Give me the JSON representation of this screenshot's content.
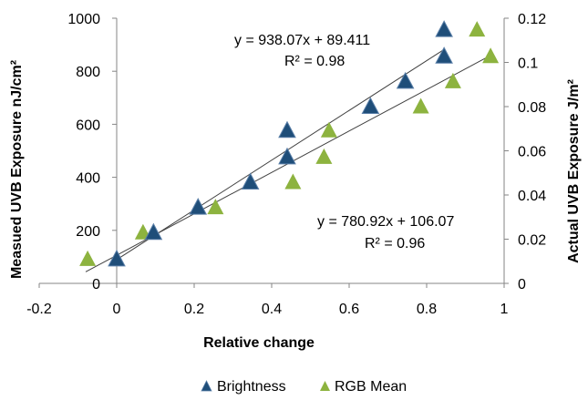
{
  "chart_data": {
    "type": "scatter",
    "title": "",
    "xlabel": "Relative change",
    "ylabel": "Measued UVB Exposure nJ/cm²",
    "y2label": "Actual UVB Exposure J/m²",
    "xlim": [
      -0.2,
      1
    ],
    "ylim": [
      0,
      1000
    ],
    "y2lim": [
      0,
      0.12
    ],
    "x_ticks": [
      "-0.2",
      "0",
      "0.2",
      "0.4",
      "0.6",
      "0.8",
      "1"
    ],
    "x_tick_values": [
      -0.2,
      0,
      0.2,
      0.4,
      0.6,
      0.8,
      1
    ],
    "y_ticks": [
      "0",
      "200",
      "400",
      "600",
      "800",
      "1000"
    ],
    "y_tick_values": [
      0,
      200,
      400,
      600,
      800,
      1000
    ],
    "y2_ticks": [
      "0",
      "0.02",
      "0.04",
      "0.06",
      "0.08",
      "0.1",
      "0.12"
    ],
    "y2_tick_values": [
      0,
      0.02,
      0.04,
      0.06,
      0.08,
      0.1,
      0.12
    ],
    "grid": false,
    "legend_position": "bottom",
    "series": [
      {
        "name": "Brightness",
        "color": "#1f4e79",
        "marker": "triangle",
        "points": [
          [
            0.0,
            95
          ],
          [
            0.095,
            195
          ],
          [
            0.21,
            290
          ],
          [
            0.345,
            385
          ],
          [
            0.44,
            480
          ],
          [
            0.44,
            580
          ],
          [
            0.655,
            670
          ],
          [
            0.745,
            765
          ],
          [
            0.845,
            860
          ],
          [
            0.845,
            960
          ]
        ],
        "trendline": {
          "slope": 938.07,
          "intercept": 89.411,
          "x_range": [
            -0.01,
            0.845
          ]
        },
        "equation": "y = 938.07x + 89.411",
        "r2": "R² = 0.98"
      },
      {
        "name": "RGB Mean",
        "color": "#8db33f",
        "marker": "triangle",
        "points": [
          [
            -0.075,
            95
          ],
          [
            0.068,
            195
          ],
          [
            0.255,
            290
          ],
          [
            0.455,
            385
          ],
          [
            0.535,
            480
          ],
          [
            0.548,
            580
          ],
          [
            0.785,
            670
          ],
          [
            0.868,
            765
          ],
          [
            0.965,
            860
          ],
          [
            0.93,
            960
          ]
        ],
        "trendline": {
          "slope": 780.92,
          "intercept": 106.07,
          "x_range": [
            -0.08,
            0.965
          ]
        },
        "equation": "y = 780.92x + 106.07",
        "r2": "R² = 0.96"
      }
    ]
  }
}
